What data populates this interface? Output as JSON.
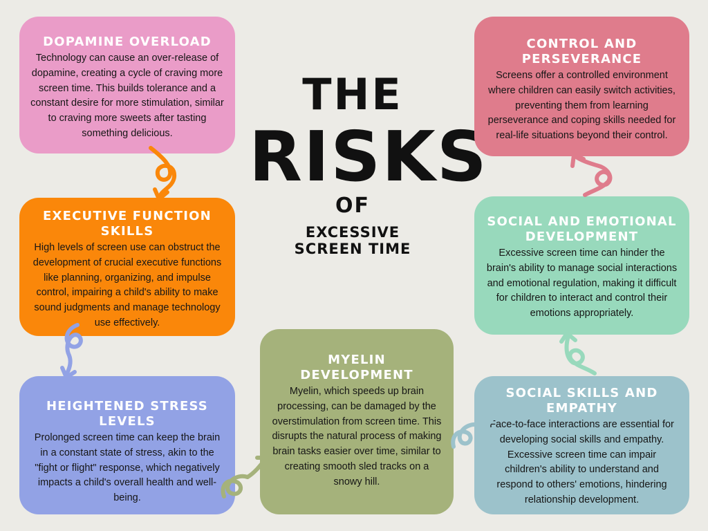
{
  "header": {
    "line1": "THE",
    "line2": "RISKS",
    "line3": "OF",
    "line4": "EXCESSIVE SCREEN TIME"
  },
  "cards": {
    "dopamine": {
      "title": "DOPAMINE OVERLOAD",
      "body": "Technology can cause an over-release of dopamine, creating a cycle of craving more screen time. This builds tolerance and a constant desire for more stimulation, similar to craving more sweets after tasting something delicious.",
      "color": "#ea9cc8"
    },
    "executive": {
      "title": "EXECUTIVE FUNCTION SKILLS",
      "body": "High levels of screen use can obstruct the development of crucial executive functions like planning, organizing, and impulse control, impairing a child's ability to make sound judgments and manage technology use effectively.",
      "color": "#fa870a"
    },
    "stress": {
      "title": "HEIGHTENED STRESS LEVELS",
      "body": "Prolonged screen time can keep the brain in a constant state of stress, akin to the \"fight or flight\" response, which negatively impacts a child's overall health and well-being.",
      "color": "#92a2e5"
    },
    "myelin": {
      "title": "MYELIN DEVELOPMENT",
      "body": "Myelin, which speeds up brain processing, can be damaged by the overstimulation from screen time. This disrupts the natural process of making brain tasks easier over time, similar to creating smooth sled tracks on a snowy hill.",
      "color": "#a5b27b"
    },
    "control": {
      "title": "CONTROL AND PERSEVERANCE",
      "body": "Screens offer a controlled environment where children can easily switch activities, preventing them from learning perseverance and coping skills needed for real-life situations beyond their control.",
      "color": "#df7c8c"
    },
    "socialemo": {
      "title": "SOCIAL AND EMOTIONAL DEVELOPMENT",
      "body": "Excessive screen time can hinder the brain's ability to manage social interactions and emotional regulation, making it difficult for children to interact and control their emotions appropriately.",
      "color": "#98d9bc"
    },
    "socialskills": {
      "title": "SOCIAL SKILLS AND EMPATHY",
      "body": "Face-to-face interactions are essential for developing social skills and empathy. Excessive screen time can impair children's ability to understand and respond to others' emotions, hindering relationship development.",
      "color": "#9cc2cb"
    }
  },
  "arrows": {
    "orange_color": "#fa870a",
    "blue_color": "#92a2e5",
    "olive_color": "#a5b27b",
    "teal_color": "#9cc2cb",
    "mint_color": "#98d9bc",
    "pink_color": "#df7c8c"
  }
}
